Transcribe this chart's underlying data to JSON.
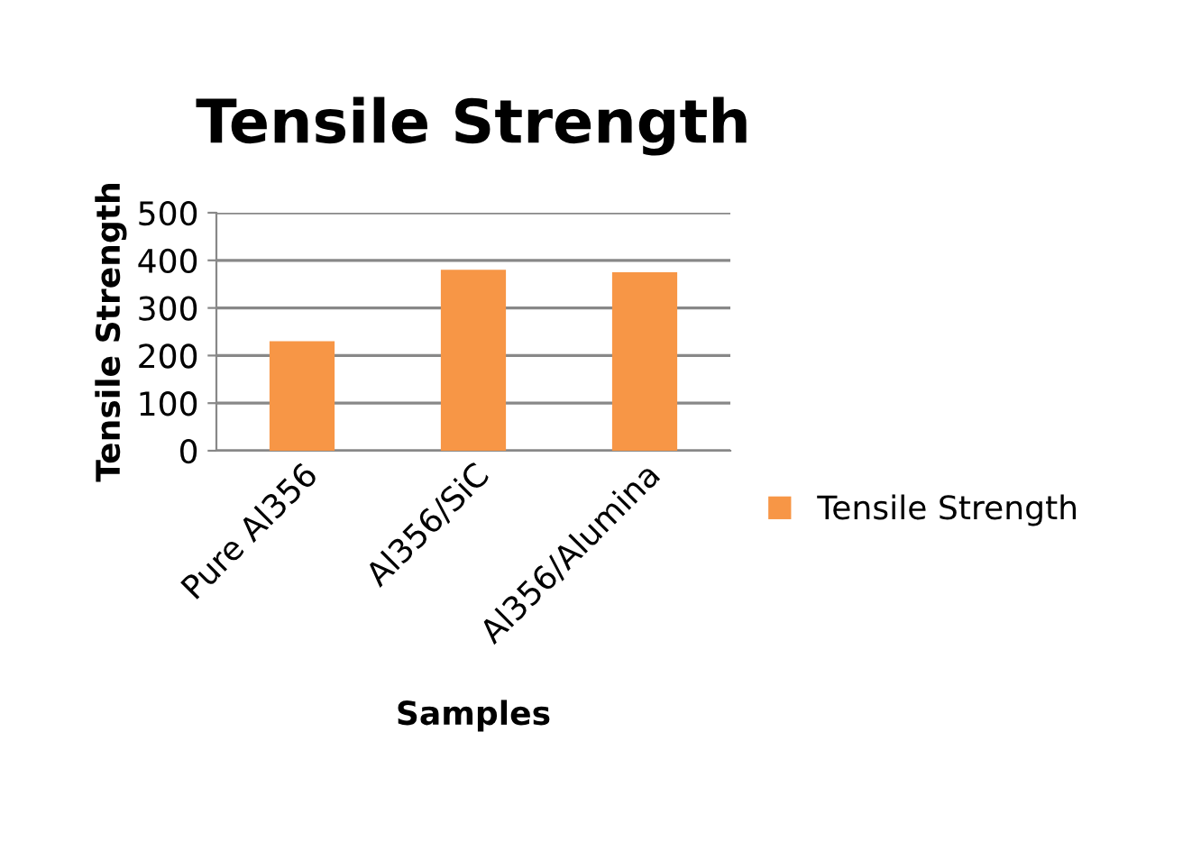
{
  "chart_data": {
    "type": "bar",
    "title": "Tensile Strength",
    "xlabel": "Samples",
    "ylabel": "Tensile Strength",
    "categories": [
      "Pure Al356",
      "Al356/SiC",
      "Al356/Alumina"
    ],
    "series": [
      {
        "name": "Tensile Strength",
        "color": "#f79646",
        "values": [
          230,
          380,
          375
        ]
      }
    ],
    "ylim": [
      0,
      500
    ],
    "yticks": [
      0,
      100,
      200,
      300,
      400,
      500
    ],
    "grid": "y",
    "legend": "right"
  }
}
